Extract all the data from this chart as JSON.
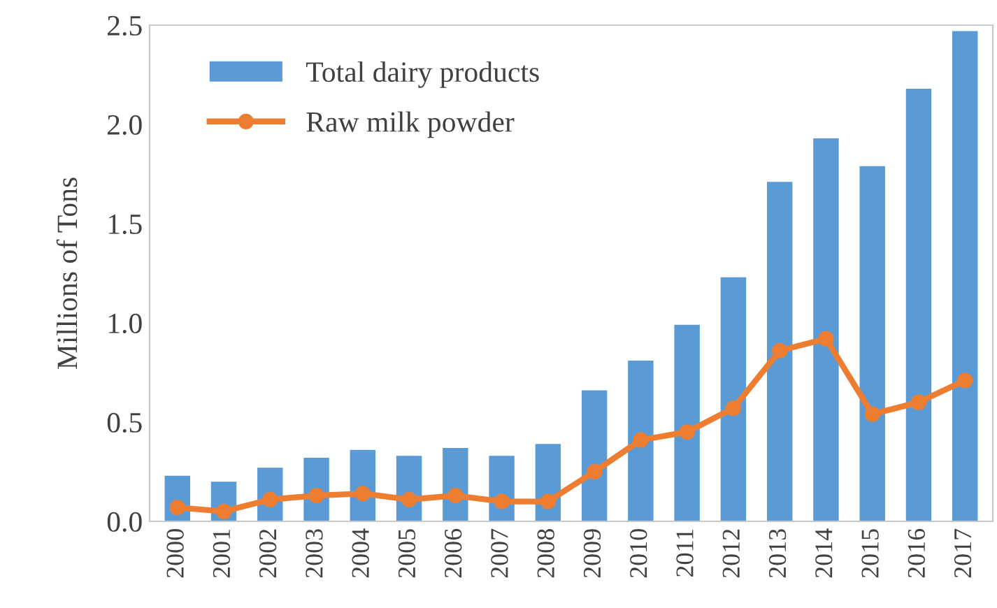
{
  "chart_data": {
    "type": "bar",
    "ylabel": "Millions of Tons",
    "categories": [
      "2000",
      "2001",
      "2002",
      "2003",
      "2004",
      "2005",
      "2006",
      "2007",
      "2008",
      "2009",
      "2010",
      "2011",
      "2012",
      "2013",
      "2014",
      "2015",
      "2016",
      "2017"
    ],
    "series": [
      {
        "name": "Total dairy products",
        "color": "#5b9bd5",
        "values": [
          0.23,
          0.2,
          0.27,
          0.32,
          0.36,
          0.33,
          0.37,
          0.33,
          0.39,
          0.66,
          0.81,
          0.99,
          1.23,
          1.71,
          1.93,
          1.79,
          2.18,
          2.47
        ]
      },
      {
        "name": "Raw milk powder",
        "type": "line",
        "color": "#ed7d31",
        "marker": "circle",
        "values": [
          0.07,
          0.05,
          0.11,
          0.13,
          0.14,
          0.11,
          0.13,
          0.1,
          0.1,
          0.25,
          0.41,
          0.45,
          0.57,
          0.86,
          0.92,
          0.54,
          0.6,
          0.71
        ]
      }
    ],
    "ylim": [
      0,
      2.5
    ],
    "yticks": [
      {
        "value": 0,
        "label": "0.0"
      },
      0.5,
      {
        "value": 1,
        "label": "1.0"
      },
      1.5,
      {
        "value": 2,
        "label": "2.0"
      },
      2.5
    ],
    "grid": false,
    "legend": "top left"
  }
}
